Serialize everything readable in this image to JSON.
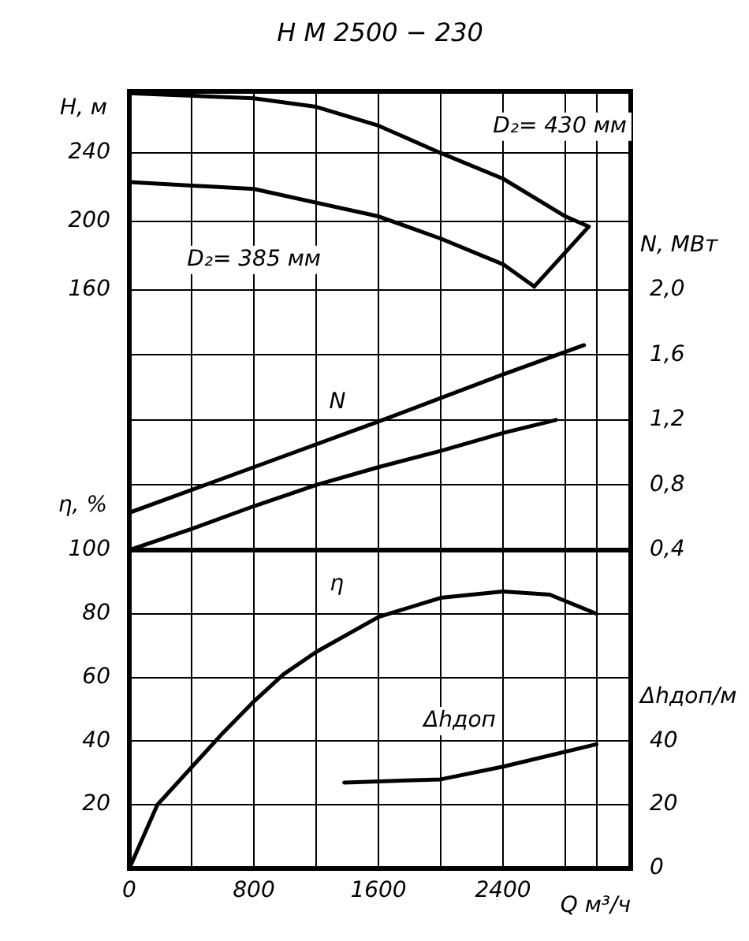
{
  "chart_data": [
    {
      "type": "line",
      "title": "Н М 2500 − 230",
      "ylabel": "H, м",
      "y2label": "N, МВт",
      "xlim": [
        0,
        3220
      ],
      "xticks": [
        0,
        {
          "value": 400,
          "label": null
        },
        800,
        {
          "value": 1200,
          "label": null
        },
        1600,
        {
          "value": 2000,
          "label": null
        },
        2400,
        {
          "value": 2800,
          "label": null
        },
        {
          "value": 3000,
          "label": null
        }
      ],
      "ylim": [
        8,
        276
      ],
      "yticks": [
        160,
        200,
        240
      ],
      "y2lim": [
        0.4,
        3.22
      ],
      "y2ticks": [
        {
          "value": 0.4,
          "label": "0,4"
        },
        {
          "value": 0.8,
          "label": "0,8"
        },
        {
          "value": 1.2,
          "label": "1,2"
        },
        {
          "value": 1.6,
          "label": "1,6"
        },
        {
          "value": 2.0,
          "label": "2,0"
        }
      ],
      "tick_labels": "y",
      "grid": true,
      "marker": "none",
      "line_style": "solid",
      "series": [
        {
          "name": "D₂= 430 мм",
          "color": "#000000",
          "x": [
            0,
            800,
            1200,
            1600,
            2000,
            2400,
            2800,
            2950
          ],
          "values": [
            275,
            272,
            267,
            256,
            240,
            225,
            203,
            197
          ]
        },
        {
          "name": "D₂= 385 мм",
          "color": "#000000",
          "x": [
            0,
            800,
            1600,
            2000,
            2400,
            2600
          ],
          "values": [
            223,
            219,
            203,
            190,
            175,
            162
          ]
        },
        {
          "color": "#000000",
          "x": [
            2600,
            2950
          ],
          "values": [
            162,
            197
          ]
        },
        {
          "name": "N",
          "color": "#000000",
          "axis": "y2",
          "x": [
            0,
            800,
            1600,
            2400,
            2920
          ],
          "values": [
            0.63,
            0.91,
            1.19,
            1.48,
            1.66
          ]
        },
        {
          "color": "#000000",
          "axis": "y2",
          "x": [
            0,
            400,
            800,
            1200,
            1600,
            2000,
            2400,
            2740
          ],
          "values": [
            0.4,
            0.53,
            0.67,
            0.8,
            0.91,
            1.01,
            1.12,
            1.2
          ]
        }
      ]
    },
    {
      "type": "line",
      "xlabel": "Q м³/ч",
      "ylabel": "η, %",
      "y2label": "Δhдоп/м",
      "xlim": [
        0,
        3220
      ],
      "xticks": [
        0,
        {
          "value": 400,
          "label": null
        },
        800,
        {
          "value": 1200,
          "label": null
        },
        1600,
        {
          "value": 2000,
          "label": null
        },
        2400,
        {
          "value": 2800,
          "label": null
        },
        {
          "value": 3000,
          "label": null
        }
      ],
      "ylim": [
        0,
        100
      ],
      "yticks": [
        20,
        40,
        60,
        80,
        100
      ],
      "y2lim": [
        0,
        100
      ],
      "y2ticks": [
        0,
        20,
        40
      ],
      "grid": true,
      "marker": "none",
      "line_style": "solid",
      "series": [
        {
          "name": "η",
          "color": "#000000",
          "x": [
            0,
            180,
            590,
            790,
            990,
            1200,
            1600,
            2000,
            2400,
            2700,
            3000
          ],
          "values": [
            0,
            20,
            42,
            52,
            61,
            68,
            79,
            85,
            87,
            86,
            80
          ]
        },
        {
          "name": "Δhдоп",
          "color": "#000000",
          "axis": "y2",
          "x": [
            1380,
            2000,
            2400,
            3000
          ],
          "values": [
            27,
            28,
            32,
            39
          ]
        }
      ]
    }
  ]
}
